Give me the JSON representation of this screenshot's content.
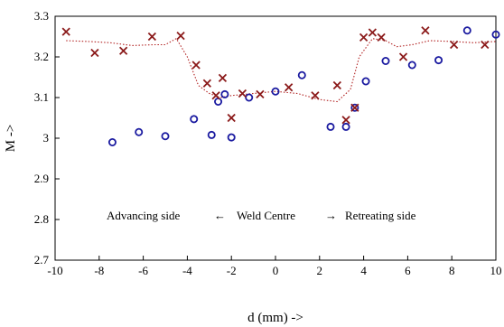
{
  "chart_data": {
    "type": "scatter",
    "title": "",
    "xlabel": "d (mm) ->",
    "ylabel": "M ->",
    "xlim": [
      -10,
      10
    ],
    "ylim": [
      2.7,
      3.3
    ],
    "xticks": [
      "-10",
      "-8",
      "-6",
      "-4",
      "-2",
      "0",
      "2",
      "4",
      "6",
      "8",
      "10"
    ],
    "yticks": [
      "2.7",
      "2.8",
      "2.9",
      "3",
      "3.1",
      "3.2",
      "3.3"
    ],
    "grid": false,
    "annotation": {
      "left": "Advancing side",
      "left_arrow": "←",
      "center": "Weld Centre",
      "right_arrow": "→",
      "right": "Retreating side"
    },
    "series": [
      {
        "marker": "circle",
        "color": "#1a1aa0",
        "points": [
          [
            -7.4,
            2.99
          ],
          [
            -6.2,
            3.015
          ],
          [
            -5.0,
            3.005
          ],
          [
            -3.7,
            3.047
          ],
          [
            -2.9,
            3.008
          ],
          [
            -2.6,
            3.09
          ],
          [
            -2.3,
            3.108
          ],
          [
            -2.0,
            3.002
          ],
          [
            -1.2,
            3.1
          ],
          [
            0.0,
            3.115
          ],
          [
            1.2,
            3.155
          ],
          [
            2.5,
            3.028
          ],
          [
            3.2,
            3.028
          ],
          [
            3.6,
            3.075
          ],
          [
            4.1,
            3.14
          ],
          [
            5.0,
            3.19
          ],
          [
            6.2,
            3.18
          ],
          [
            7.4,
            3.192
          ],
          [
            8.7,
            3.265
          ],
          [
            10.0,
            3.255
          ]
        ]
      },
      {
        "marker": "x",
        "color": "#8b1a1a",
        "points": [
          [
            -9.5,
            3.262
          ],
          [
            -8.2,
            3.21
          ],
          [
            -6.9,
            3.215
          ],
          [
            -5.6,
            3.25
          ],
          [
            -4.3,
            3.252
          ],
          [
            -3.6,
            3.18
          ],
          [
            -3.1,
            3.135
          ],
          [
            -2.7,
            3.105
          ],
          [
            -2.4,
            3.148
          ],
          [
            -2.0,
            3.05
          ],
          [
            -1.5,
            3.11
          ],
          [
            -0.7,
            3.108
          ],
          [
            0.6,
            3.125
          ],
          [
            1.8,
            3.105
          ],
          [
            2.8,
            3.13
          ],
          [
            3.2,
            3.045
          ],
          [
            3.6,
            3.075
          ],
          [
            4.0,
            3.248
          ],
          [
            4.4,
            3.26
          ],
          [
            4.8,
            3.248
          ],
          [
            5.8,
            3.2
          ],
          [
            6.8,
            3.265
          ],
          [
            8.1,
            3.23
          ],
          [
            9.5,
            3.23
          ]
        ]
      },
      {
        "style": "dotted-line",
        "color": "#b22222",
        "points": [
          [
            -9.5,
            3.24
          ],
          [
            -8.5,
            3.238
          ],
          [
            -7.5,
            3.235
          ],
          [
            -6.5,
            3.228
          ],
          [
            -5.5,
            3.23
          ],
          [
            -5.0,
            3.23
          ],
          [
            -4.5,
            3.245
          ],
          [
            -4.0,
            3.2
          ],
          [
            -3.5,
            3.13
          ],
          [
            -3.0,
            3.11
          ],
          [
            -2.5,
            3.1
          ],
          [
            -2.0,
            3.105
          ],
          [
            -1.0,
            3.11
          ],
          [
            0.0,
            3.115
          ],
          [
            1.0,
            3.11
          ],
          [
            2.0,
            3.095
          ],
          [
            2.8,
            3.09
          ],
          [
            3.4,
            3.12
          ],
          [
            3.8,
            3.2
          ],
          [
            4.4,
            3.245
          ],
          [
            5.0,
            3.24
          ],
          [
            5.5,
            3.225
          ],
          [
            6.2,
            3.23
          ],
          [
            7.0,
            3.24
          ],
          [
            8.0,
            3.238
          ],
          [
            9.0,
            3.235
          ],
          [
            10.0,
            3.238
          ]
        ]
      }
    ]
  }
}
